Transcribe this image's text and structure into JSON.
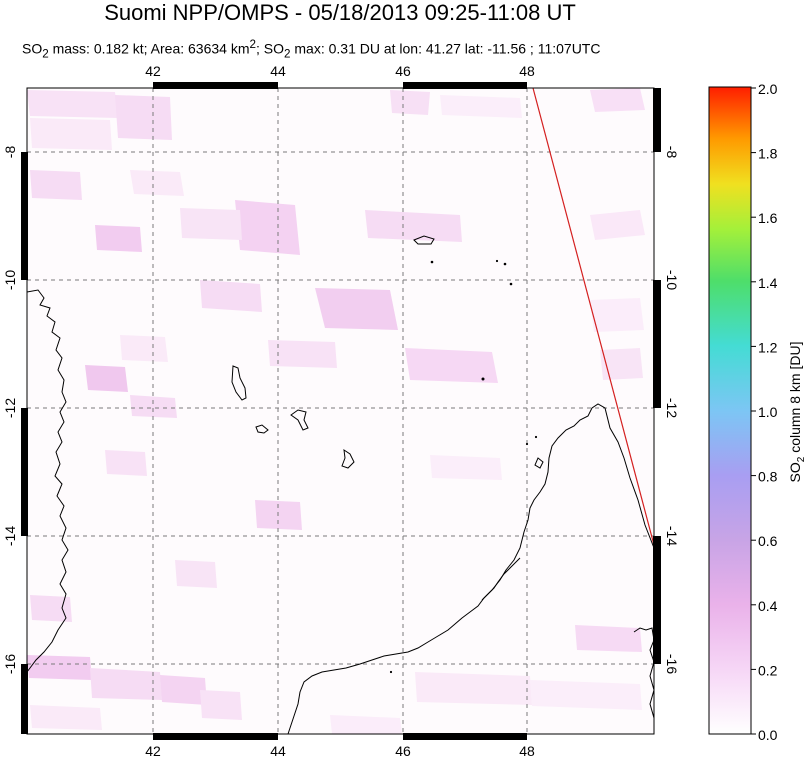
{
  "title": "Suomi NPP/OMPS - 05/18/2013 09:25-11:08 UT",
  "subtitle": {
    "mass_prefix": "SO",
    "mass_sub": "2",
    "mass_text": " mass: 0.182 kt; Area: 63634 km",
    "area_sup": "2",
    "max_prefix": "; SO",
    "max_sub": "2",
    "max_text": " max: 0.31 DU at lon: 41.27 lat: -11.56 ; 11:07UTC"
  },
  "map": {
    "lon_range": [
      40.0,
      50.0
    ],
    "lat_range": [
      -17.0,
      -7.0
    ],
    "lon_ticks": [
      "42",
      "44",
      "46",
      "48"
    ],
    "lat_ticks": [
      "-8",
      "-10",
      "-12",
      "-14",
      "-16"
    ],
    "grid": "dashed",
    "swath_edge_color": "#d42020"
  },
  "colorbar": {
    "label_prefix": "SO",
    "label_sub": "2",
    "label_suffix": " column 8 km [DU]",
    "ticks": [
      "2.0",
      "1.8",
      "1.6",
      "1.4",
      "1.2",
      "1.0",
      "0.8",
      "0.6",
      "0.4",
      "0.2",
      "0.0"
    ],
    "range": [
      0.0,
      2.0
    ],
    "colors": [
      "#ffffff",
      "#f0b8f0",
      "#b09ae0",
      "#6ec8f0",
      "#40e0d0",
      "#5ae05a",
      "#c8f040",
      "#ffd000",
      "#ff7a00",
      "#ff2000"
    ]
  }
}
